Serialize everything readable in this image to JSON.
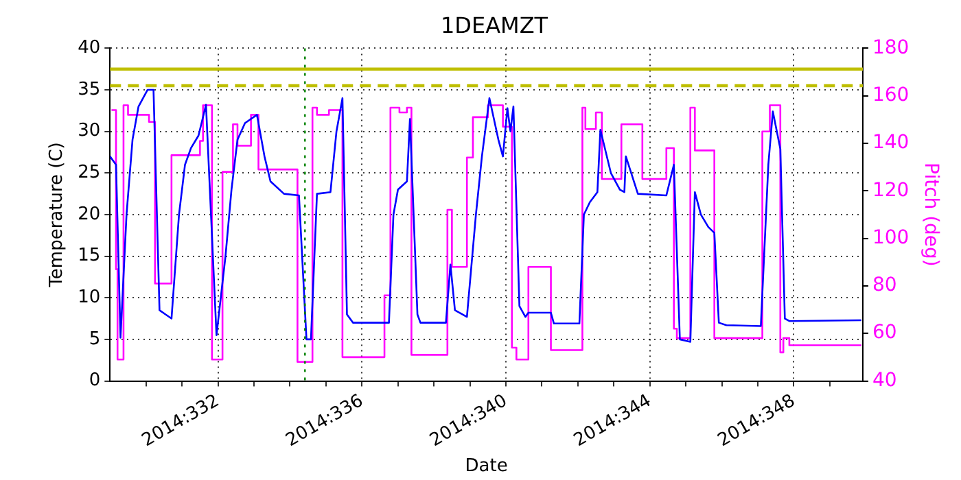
{
  "chart_data": {
    "type": "line",
    "title": "1DEAMZT",
    "xlabel": "Date",
    "ylabel": "Temperature (C)",
    "y2label": "Pitch (deg)",
    "xlim": [
      "2014-11-25T00:00",
      "2014-12-15T22:00"
    ],
    "xticks": [
      {
        "value": "2014-11-26",
        "label": null
      },
      {
        "value": "2014-11-27",
        "label": null
      },
      {
        "value": "2014-11-28",
        "label": "2014:332"
      },
      {
        "value": "2014-11-29",
        "label": null
      },
      {
        "value": "2014-11-30",
        "label": null
      },
      {
        "value": "2014-12-01",
        "label": null
      },
      {
        "value": "2014-12-02",
        "label": "2014:336"
      },
      {
        "value": "2014-12-03",
        "label": null
      },
      {
        "value": "2014-12-04",
        "label": null
      },
      {
        "value": "2014-12-05",
        "label": null
      },
      {
        "value": "2014-12-06",
        "label": "2014:340"
      },
      {
        "value": "2014-12-07",
        "label": null
      },
      {
        "value": "2014-12-08",
        "label": null
      },
      {
        "value": "2014-12-09",
        "label": null
      },
      {
        "value": "2014-12-10",
        "label": "2014:344"
      },
      {
        "value": "2014-12-11",
        "label": null
      },
      {
        "value": "2014-12-12",
        "label": null
      },
      {
        "value": "2014-12-13",
        "label": null
      },
      {
        "value": "2014-12-14",
        "label": "2014:348"
      },
      {
        "value": "2014-12-15",
        "label": null
      }
    ],
    "ylim": [
      0,
      40
    ],
    "yticks": [
      0,
      5,
      10,
      15,
      20,
      25,
      30,
      35,
      40
    ],
    "y2lim": [
      40,
      180
    ],
    "y2ticks": [
      40,
      60,
      80,
      100,
      120,
      140,
      160,
      180
    ],
    "grid": true,
    "marker": "none",
    "line_style": "solid",
    "series": [
      {
        "color": "#0000ff",
        "x": [
          "2014-11-25T00:00",
          "2014-11-25T04:00",
          "2014-11-25T07:00",
          "2014-11-25T11:00",
          "2014-11-25T15:00",
          "2014-11-25T19:00",
          "2014-11-26T01:00",
          "2014-11-26T05:00",
          "2014-11-26T09:00",
          "2014-11-26T13:00",
          "2014-11-26T17:00",
          "2014-11-26T22:00",
          "2014-11-27T02:00",
          "2014-11-27T06:00",
          "2014-11-27T11:00",
          "2014-11-27T16:00",
          "2014-11-27T23:00",
          "2014-11-28T05:00",
          "2014-11-28T09:00",
          "2014-11-28T13:00",
          "2014-11-28T18:00",
          "2014-11-29T02:00",
          "2014-11-29T07:00",
          "2014-11-29T11:00",
          "2014-11-29T20:00",
          "2014-11-30T06:00",
          "2014-11-30T11:00",
          "2014-11-30T14:00",
          "2014-11-30T18:00",
          "2014-12-01T03:00",
          "2014-12-01T07:00",
          "2014-12-01T11:00",
          "2014-12-01T14:00",
          "2014-12-01T18:00",
          "2014-12-02T18:00",
          "2014-12-02T21:00",
          "2014-12-03T00:00",
          "2014-12-03T06:00",
          "2014-12-03T08:00",
          "2014-12-03T13:00",
          "2014-12-03T15:00",
          "2014-12-04T08:00",
          "2014-12-04T11:00",
          "2014-12-04T14:00",
          "2014-12-04T22:00",
          "2014-12-05T04:00",
          "2014-12-05T08:00",
          "2014-12-05T13:00",
          "2014-12-05T19:00",
          "2014-12-05T22:00",
          "2014-12-06T01:00",
          "2014-12-06T03:00",
          "2014-12-06T05:00",
          "2014-12-06T09:00",
          "2014-12-06T13:00",
          "2014-12-06T15:00",
          "2014-12-07T06:00",
          "2014-12-07T08:00",
          "2014-12-08T01:00",
          "2014-12-08T04:00",
          "2014-12-08T08:00",
          "2014-12-08T13:00",
          "2014-12-08T15:00",
          "2014-12-08T22:00",
          "2014-12-09T04:00",
          "2014-12-09T07:00",
          "2014-12-09T08:00",
          "2014-12-09T16:00",
          "2014-12-10T11:00",
          "2014-12-10T16:00",
          "2014-12-10T20:00",
          "2014-12-11T03:00",
          "2014-12-11T06:00",
          "2014-12-11T10:00",
          "2014-12-11T15:00",
          "2014-12-11T19:00",
          "2014-12-11T22:00",
          "2014-12-12T03:00",
          "2014-12-13T02:00",
          "2014-12-13T07:00",
          "2014-12-13T10:00",
          "2014-12-13T15:00",
          "2014-12-13T18:00",
          "2014-12-13T21:00",
          "2014-12-15T21:00"
        ],
        "values": [
          27,
          26,
          5.2,
          20,
          29,
          33,
          35,
          35,
          8.5,
          8,
          7.5,
          20,
          26,
          28,
          29.5,
          33.2,
          5.5,
          15,
          23,
          29,
          31,
          32,
          27,
          24,
          22.5,
          22.3,
          5,
          5,
          22.5,
          22.7,
          30,
          34,
          8,
          7,
          7,
          20,
          23,
          24,
          31.5,
          8,
          7,
          7,
          14,
          8.5,
          7.7,
          20,
          27,
          34,
          29,
          27,
          32.8,
          30,
          33,
          9,
          7.7,
          8.2,
          8.2,
          6.9,
          6.9,
          20,
          21.5,
          22.7,
          30.2,
          25,
          23,
          22.7,
          27,
          22.5,
          22.3,
          26,
          5,
          4.7,
          22.7,
          20,
          18.5,
          17.8,
          7,
          6.7,
          6.6,
          26,
          32.4,
          27.9,
          7.5,
          7.2,
          7.3
        ]
      },
      {
        "type": "step",
        "axis": "y2",
        "color": "#ff00ff",
        "x": [
          "2014-11-25T01:00",
          "2014-11-25T04:00",
          "2014-11-25T05:00",
          "2014-11-25T09:00",
          "2014-11-25T12:00",
          "2014-11-26T02:00",
          "2014-11-26T06:00",
          "2014-11-26T17:00",
          "2014-11-27T12:00",
          "2014-11-27T14:00",
          "2014-11-27T20:00",
          "2014-11-28T03:00",
          "2014-11-28T10:00",
          "2014-11-28T13:00",
          "2014-11-28T22:00",
          "2014-11-29T03:00",
          "2014-11-30T05:00",
          "2014-11-30T15:00",
          "2014-11-30T18:00",
          "2014-12-01T02:00",
          "2014-12-01T11:00",
          "2014-12-02T15:00",
          "2014-12-02T19:00",
          "2014-12-03T01:00",
          "2014-12-03T06:00",
          "2014-12-03T09:00",
          "2014-12-04T09:00",
          "2014-12-04T12:00",
          "2014-12-04T22:00",
          "2014-12-05T02:00",
          "2014-12-05T12:00",
          "2014-12-05T22:00",
          "2014-12-06T04:00",
          "2014-12-06T07:00",
          "2014-12-06T15:00",
          "2014-12-07T06:00",
          "2014-12-08T03:00",
          "2014-12-08T05:00",
          "2014-12-08T12:00",
          "2014-12-08T16:00",
          "2014-12-09T05:00",
          "2014-12-09T19:00",
          "2014-12-10T11:00",
          "2014-12-10T16:00",
          "2014-12-10T18:00",
          "2014-12-11T03:00",
          "2014-12-11T06:00",
          "2014-12-11T19:00",
          "2014-12-13T03:00",
          "2014-12-13T08:00",
          "2014-12-13T15:00",
          "2014-12-13T17:00",
          "2014-12-13T21:00",
          "2014-12-15T21:00"
        ],
        "values": [
          154,
          87,
          49,
          156,
          152,
          149,
          81,
          135,
          141,
          156,
          49,
          128,
          148,
          139,
          152,
          129,
          48,
          155,
          152,
          154,
          50,
          76,
          155,
          153,
          155,
          51,
          112,
          88,
          134,
          151,
          156,
          147,
          54,
          49,
          88,
          53,
          155,
          146,
          153,
          125,
          148,
          125,
          138,
          62,
          58,
          155,
          137,
          58,
          145,
          156,
          52,
          58,
          55,
          55
        ]
      }
    ],
    "ref_lines": [
      {
        "axis": "y",
        "value": 37.5,
        "color": "#bfbf00",
        "line_style": "solid"
      },
      {
        "axis": "y",
        "value": 35.5,
        "color": "#bfbf00",
        "line_style": "dashed"
      },
      {
        "axis": "x",
        "value": "2014-11-30T10:00",
        "color": "#008000",
        "line_style": "dotted"
      }
    ]
  }
}
